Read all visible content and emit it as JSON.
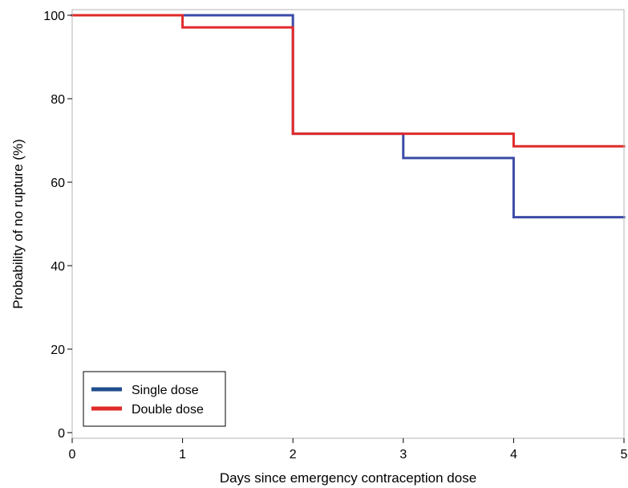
{
  "chart_data": {
    "type": "line",
    "step": true,
    "xlabel": "Days since emergency contraception dose",
    "ylabel": "Probability of no rupture (%)",
    "xlim": [
      0,
      5
    ],
    "ylim": [
      0,
      100
    ],
    "xticks": [
      0,
      1,
      2,
      3,
      4,
      5
    ],
    "yticks": [
      0,
      20,
      40,
      60,
      80,
      100
    ],
    "grid": false,
    "legend_position": "bottom-left",
    "series": [
      {
        "name": "Single dose",
        "color": "#3b4ba8",
        "x": [
          0,
          2,
          3,
          4,
          5
        ],
        "y": [
          100,
          71.6,
          65.8,
          51.6,
          51.6
        ]
      },
      {
        "name": "Double dose",
        "color": "#e02a2a",
        "x": [
          0,
          1,
          2,
          4,
          5
        ],
        "y": [
          100,
          97.1,
          71.6,
          68.6,
          68.6
        ]
      }
    ],
    "legend_swatch_colors": [
      "#1f4e8c",
      "#e02a2a"
    ]
  }
}
